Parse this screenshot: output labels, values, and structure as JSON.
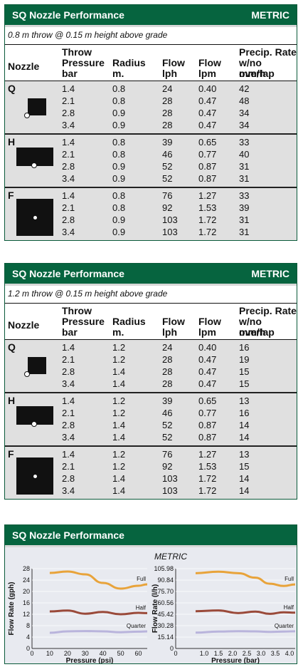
{
  "tables": [
    {
      "title": "SQ Nozzle Performance",
      "unit": "METRIC",
      "subtitle": "0.8 m throw @ 0.15 m height above grade",
      "headers": {
        "nozzle": "Nozzle",
        "throw1": "Throw",
        "throw2": "Pressure",
        "throw3": "bar",
        "radius1": "Radius",
        "radius2": "m.",
        "flow1a": "Flow",
        "flow1b": "lph",
        "flow2a": "Flow",
        "flow2b": "lpm",
        "precip1": "Precip. Rate",
        "precip2": "w/no overlap",
        "precip3": "mm/h"
      },
      "groups": [
        {
          "label": "Q",
          "shape": "quarter",
          "rows": [
            [
              "1.4",
              "0.8",
              "24",
              "0.40",
              "42"
            ],
            [
              "2.1",
              "0.8",
              "28",
              "0.47",
              "48"
            ],
            [
              "2.8",
              "0.9",
              "28",
              "0.47",
              "34"
            ],
            [
              "3.4",
              "0.9",
              "28",
              "0.47",
              "34"
            ]
          ]
        },
        {
          "label": "H",
          "shape": "half",
          "rows": [
            [
              "1.4",
              "0.8",
              "39",
              "0.65",
              "33"
            ],
            [
              "2.1",
              "0.8",
              "46",
              "0.77",
              "40"
            ],
            [
              "2.8",
              "0.9",
              "52",
              "0.87",
              "31"
            ],
            [
              "3.4",
              "0.9",
              "52",
              "0.87",
              "31"
            ]
          ]
        },
        {
          "label": "F",
          "shape": "full",
          "rows": [
            [
              "1.4",
              "0.8",
              "76",
              "1.27",
              "33"
            ],
            [
              "2.1",
              "0.8",
              "92",
              "1.53",
              "39"
            ],
            [
              "2.8",
              "0.9",
              "103",
              "1.72",
              "31"
            ],
            [
              "3.4",
              "0.9",
              "103",
              "1.72",
              "31"
            ]
          ]
        }
      ]
    },
    {
      "title": "SQ Nozzle Performance",
      "unit": "METRIC",
      "subtitle": "1.2 m throw @ 0.15 m height above grade",
      "headers": {
        "nozzle": "Nozzle",
        "throw1": "Throw",
        "throw2": "Pressure",
        "throw3": "bar",
        "radius1": "Radius",
        "radius2": "m.",
        "flow1a": "Flow",
        "flow1b": "lph",
        "flow2a": "Flow",
        "flow2b": "lpm",
        "precip1": "Precip. Rate",
        "precip2": "w/no overlap",
        "precip3": "mm/h"
      },
      "groups": [
        {
          "label": "Q",
          "shape": "quarter",
          "rows": [
            [
              "1.4",
              "1.2",
              "24",
              "0.40",
              "16"
            ],
            [
              "2.1",
              "1.2",
              "28",
              "0.47",
              "19"
            ],
            [
              "2.8",
              "1.4",
              "28",
              "0.47",
              "15"
            ],
            [
              "3.4",
              "1.4",
              "28",
              "0.47",
              "15"
            ]
          ]
        },
        {
          "label": "H",
          "shape": "half",
          "rows": [
            [
              "1.4",
              "1.2",
              "39",
              "0.65",
              "13"
            ],
            [
              "2.1",
              "1.2",
              "46",
              "0.77",
              "16"
            ],
            [
              "2.8",
              "1.4",
              "52",
              "0.87",
              "14"
            ],
            [
              "3.4",
              "1.4",
              "52",
              "0.87",
              "14"
            ]
          ]
        },
        {
          "label": "F",
          "shape": "full",
          "rows": [
            [
              "1.4",
              "1.2",
              "76",
              "1.27",
              "13"
            ],
            [
              "2.1",
              "1.2",
              "92",
              "1.53",
              "15"
            ],
            [
              "2.8",
              "1.4",
              "103",
              "1.72",
              "14"
            ],
            [
              "3.4",
              "1.4",
              "103",
              "1.72",
              "14"
            ]
          ]
        }
      ]
    }
  ],
  "chart_panel": {
    "title": "SQ Nozzle Performance",
    "subtitle": "METRIC"
  },
  "chart_data": [
    {
      "type": "line",
      "xlabel": "Pressure (psi)",
      "ylabel": "Flow Rate (gph)",
      "xlim": [
        0,
        65
      ],
      "ylim": [
        0,
        28
      ],
      "xticks": [
        "0",
        "10",
        "20",
        "30",
        "40",
        "50",
        "60"
      ],
      "yticks": [
        "0",
        "4",
        "8",
        "12",
        "16",
        "20",
        "24",
        "28"
      ],
      "series": [
        {
          "name": "Full",
          "color": "#e8a33a",
          "x": [
            10,
            20,
            30,
            40,
            50,
            60,
            65
          ],
          "values": [
            26.5,
            27,
            26,
            23,
            21,
            22,
            22.5
          ]
        },
        {
          "name": "Half",
          "color": "#9a4a3a",
          "x": [
            10,
            20,
            30,
            40,
            50,
            60,
            65
          ],
          "values": [
            13,
            13.3,
            12.2,
            12.8,
            12,
            12.5,
            12.4
          ]
        },
        {
          "name": "Quarter",
          "color": "#b9b4dc",
          "x": [
            10,
            20,
            30,
            40,
            50,
            60,
            65
          ],
          "values": [
            5.5,
            6,
            6.1,
            6,
            5.7,
            5.9,
            6
          ]
        }
      ]
    },
    {
      "type": "line",
      "xlabel": "Pressure (bar)",
      "ylabel": "Flow Rate (l/h)",
      "xlim": [
        0,
        4.2
      ],
      "ylim": [
        0,
        105.98
      ],
      "xticks": [
        "0",
        "1.0",
        "1.5",
        "2.0",
        "2.5",
        "3.0",
        "3.5",
        "4.0"
      ],
      "xtickvals": [
        0,
        1.0,
        1.5,
        2.0,
        2.5,
        3.0,
        3.5,
        4.0
      ],
      "yticks": [
        "0",
        "15.14",
        "30.28",
        "45.42",
        "60.56",
        "75.70",
        "90.84",
        "105.98"
      ],
      "series": [
        {
          "name": "Full",
          "color": "#e8a33a",
          "x": [
            0.7,
            1.5,
            2.2,
            2.8,
            3.3,
            3.8,
            4.2
          ],
          "values": [
            100,
            102,
            100,
            94,
            86,
            83,
            85
          ]
        },
        {
          "name": "Half",
          "color": "#9a4a3a",
          "x": [
            0.7,
            1.5,
            2.2,
            2.8,
            3.3,
            3.8,
            4.2
          ],
          "values": [
            49.5,
            50.5,
            47,
            49,
            46,
            48,
            47.5
          ]
        },
        {
          "name": "Quarter",
          "color": "#b9b4dc",
          "x": [
            0.7,
            1.5,
            2.2,
            2.8,
            3.3,
            3.8,
            4.2
          ],
          "values": [
            21,
            22.5,
            23,
            22.7,
            22,
            22.5,
            22.8
          ]
        }
      ]
    }
  ]
}
